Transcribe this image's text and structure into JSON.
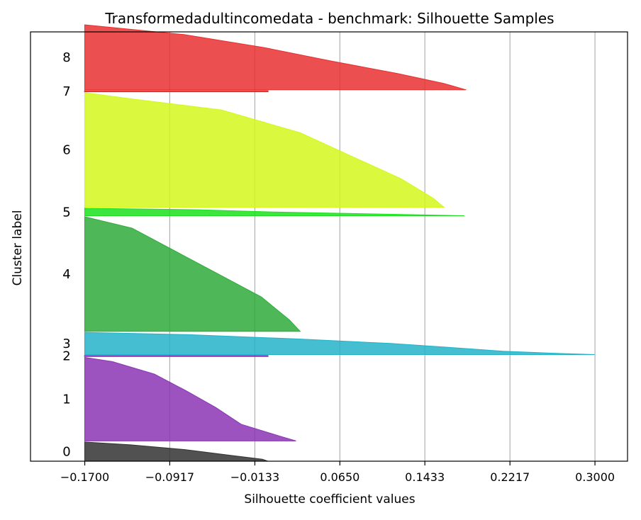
{
  "chart_data": {
    "type": "silhouette",
    "title": "Transformedadultincomedata - benchmark: Silhouette Samples",
    "xlabel": "Silhouette coefficient values",
    "ylabel": "Cluster label",
    "xlim": [
      -0.22,
      0.33
    ],
    "xticks": [
      -0.17,
      -0.0917,
      -0.0133,
      0.065,
      0.1433,
      0.2217,
      0.3
    ],
    "xtick_labels": [
      "−0.1700",
      "−0.0917",
      "−0.0133",
      "0.0650",
      "0.1433",
      "0.2217",
      "0.3000"
    ],
    "x_grid": true,
    "clusters": [
      {
        "label": "0",
        "color": "#333333",
        "size": 26,
        "max": -0.0013,
        "profile": [
          [
            0,
            1.0
          ],
          [
            0.1,
            0.97
          ],
          [
            0.3,
            0.8
          ],
          [
            0.6,
            0.55
          ],
          [
            0.85,
            0.25
          ],
          [
            1,
            0.0
          ]
        ]
      },
      {
        "label": "1",
        "color": "#8b35b5",
        "size": 113,
        "max": 0.0246,
        "profile": [
          [
            0,
            1.0
          ],
          [
            0.06,
            0.92
          ],
          [
            0.2,
            0.74
          ],
          [
            0.4,
            0.62
          ],
          [
            0.6,
            0.48
          ],
          [
            0.8,
            0.33
          ],
          [
            0.95,
            0.13
          ],
          [
            1,
            0.0
          ]
        ]
      },
      {
        "label": "2",
        "color": "#8b35b5",
        "size": 1,
        "max": -0.0013,
        "profile": [
          [
            0,
            1.0
          ],
          [
            1,
            1.0
          ]
        ]
      },
      {
        "label": "3",
        "color": "#23b3c8",
        "size": 30,
        "max": 0.2997,
        "profile": [
          [
            0,
            1.0
          ],
          [
            0.05,
            0.93
          ],
          [
            0.15,
            0.82
          ],
          [
            0.3,
            0.73
          ],
          [
            0.5,
            0.6
          ],
          [
            0.7,
            0.42
          ],
          [
            0.9,
            0.2
          ],
          [
            1,
            0.0
          ]
        ]
      },
      {
        "label": "4",
        "color": "#2fac3c",
        "size": 155,
        "max": 0.0284,
        "profile": [
          [
            0,
            1.0
          ],
          [
            0.1,
            0.95
          ],
          [
            0.3,
            0.82
          ],
          [
            0.5,
            0.62
          ],
          [
            0.7,
            0.42
          ],
          [
            0.9,
            0.22
          ],
          [
            1,
            0.0
          ]
        ]
      },
      {
        "label": "5",
        "color": "#1de01d",
        "size": 10,
        "max": 0.1796,
        "profile": [
          [
            0,
            1.0
          ],
          [
            0.2,
            0.8
          ],
          [
            0.5,
            0.5
          ],
          [
            0.8,
            0.3
          ],
          [
            1,
            0.0
          ]
        ]
      },
      {
        "label": "6",
        "color": "#d4f71c",
        "size": 155,
        "max": 0.1608,
        "profile": [
          [
            0,
            1.0
          ],
          [
            0.08,
            0.97
          ],
          [
            0.25,
            0.88
          ],
          [
            0.45,
            0.74
          ],
          [
            0.65,
            0.6
          ],
          [
            0.85,
            0.38
          ],
          [
            0.95,
            0.12
          ],
          [
            1,
            0.0
          ]
        ]
      },
      {
        "label": "7",
        "color": "#e83030",
        "size": 1,
        "max": -0.0013,
        "profile": [
          [
            0,
            1.0
          ],
          [
            1,
            1.0
          ]
        ]
      },
      {
        "label": "8",
        "color": "#e83030",
        "size": 88,
        "max": 0.1813,
        "profile": [
          [
            0,
            1.0
          ],
          [
            0.1,
            0.94
          ],
          [
            0.25,
            0.82
          ],
          [
            0.45,
            0.64
          ],
          [
            0.65,
            0.47
          ],
          [
            0.85,
            0.26
          ],
          [
            1,
            0.0
          ]
        ]
      }
    ]
  }
}
